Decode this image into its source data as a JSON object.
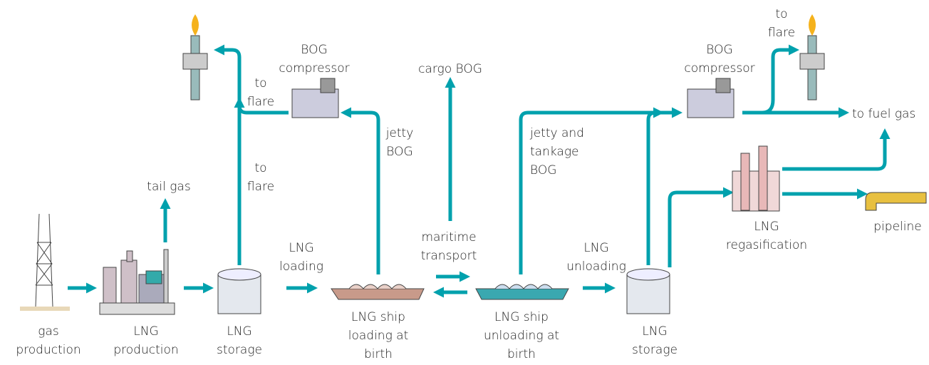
{
  "labels": [
    {
      "lines": [
        "gas",
        "production"
      ]
    },
    {
      "lines": [
        "LNG",
        "production"
      ]
    },
    {
      "lines": [
        "LNG",
        "storage"
      ]
    },
    {
      "lines": [
        "tail gas"
      ]
    },
    {
      "lines": [
        "to",
        "flare"
      ]
    },
    {
      "lines": [
        "to",
        "flare"
      ]
    },
    {
      "lines": [
        "BOG",
        "compressor"
      ]
    },
    {
      "lines": [
        "jetty",
        "BOG"
      ]
    },
    {
      "lines": [
        "cargo BOG"
      ]
    },
    {
      "lines": [
        "LNG",
        "loading"
      ]
    },
    {
      "lines": [
        "maritime",
        "transport"
      ]
    },
    {
      "lines": [
        "LNG ship",
        "loading at",
        "birth"
      ]
    },
    {
      "lines": [
        "LNG ship",
        "unloading at",
        "birth"
      ]
    },
    {
      "lines": [
        "jetty and",
        "tankage",
        "BOG"
      ]
    },
    {
      "lines": [
        "LNG",
        "unloading"
      ]
    },
    {
      "lines": [
        "LNG",
        "storage"
      ]
    },
    {
      "lines": [
        "BOG",
        "compressor"
      ]
    },
    {
      "lines": [
        "to",
        "flare"
      ]
    },
    {
      "lines": [
        "to fuel gas"
      ]
    },
    {
      "lines": [
        "LNG",
        "regasification"
      ]
    },
    {
      "lines": [
        "pipeline"
      ]
    }
  ]
}
